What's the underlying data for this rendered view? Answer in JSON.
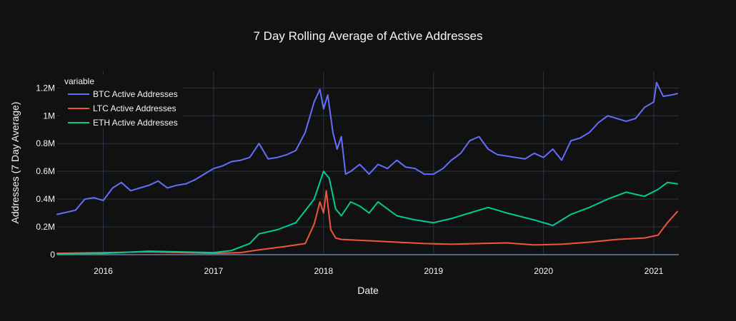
{
  "chart_data": {
    "type": "line",
    "title": "7 Day Rolling Average of Active Addresses",
    "xlabel": "Date",
    "ylabel": "Addresses (7 Day Average)",
    "x_range": [
      "2015-08-01",
      "2021-03-25"
    ],
    "ylim": [
      0,
      1320000
    ],
    "x_ticks": [
      {
        "value": "2016-01-01",
        "label": "2016"
      },
      {
        "value": "2017-01-01",
        "label": "2017"
      },
      {
        "value": "2018-01-01",
        "label": "2018"
      },
      {
        "value": "2019-01-01",
        "label": "2019"
      },
      {
        "value": "2020-01-01",
        "label": "2020"
      },
      {
        "value": "2021-01-01",
        "label": "2021"
      }
    ],
    "y_ticks": [
      {
        "value": 0,
        "label": "0"
      },
      {
        "value": 200000,
        "label": "0.2M"
      },
      {
        "value": 400000,
        "label": "0.4M"
      },
      {
        "value": 600000,
        "label": "0.6M"
      },
      {
        "value": 800000,
        "label": "0.8M"
      },
      {
        "value": 1000000,
        "label": "1M"
      },
      {
        "value": 1200000,
        "label": "1.2M"
      }
    ],
    "grid": true,
    "legend": {
      "title": "variable",
      "placement": "top-left"
    },
    "series": [
      {
        "name": "BTC Active Addresses",
        "color": "#636efa",
        "x": [
          "2015-08-01",
          "2015-10-01",
          "2015-11-01",
          "2015-12-01",
          "2016-01-01",
          "2016-02-01",
          "2016-03-01",
          "2016-04-01",
          "2016-05-01",
          "2016-06-01",
          "2016-07-01",
          "2016-08-01",
          "2016-09-01",
          "2016-10-01",
          "2016-11-01",
          "2016-12-01",
          "2017-01-01",
          "2017-02-01",
          "2017-03-01",
          "2017-04-01",
          "2017-05-01",
          "2017-06-01",
          "2017-07-01",
          "2017-08-01",
          "2017-09-01",
          "2017-10-01",
          "2017-11-01",
          "2017-12-01",
          "2017-12-20",
          "2018-01-01",
          "2018-01-15",
          "2018-02-01",
          "2018-02-15",
          "2018-03-01",
          "2018-03-15",
          "2018-04-01",
          "2018-05-01",
          "2018-06-01",
          "2018-07-01",
          "2018-08-01",
          "2018-09-01",
          "2018-10-01",
          "2018-11-01",
          "2018-12-01",
          "2019-01-01",
          "2019-02-01",
          "2019-03-01",
          "2019-04-01",
          "2019-05-01",
          "2019-06-01",
          "2019-07-01",
          "2019-08-01",
          "2019-09-01",
          "2019-10-01",
          "2019-11-01",
          "2019-12-01",
          "2020-01-01",
          "2020-02-01",
          "2020-03-01",
          "2020-04-01",
          "2020-05-01",
          "2020-06-01",
          "2020-07-01",
          "2020-08-01",
          "2020-09-01",
          "2020-10-01",
          "2020-11-01",
          "2020-12-01",
          "2021-01-01",
          "2021-01-10",
          "2021-02-01",
          "2021-03-01",
          "2021-03-20"
        ],
        "y": [
          290000,
          320000,
          400000,
          410000,
          390000,
          480000,
          520000,
          460000,
          480000,
          500000,
          530000,
          480000,
          500000,
          510000,
          540000,
          580000,
          620000,
          640000,
          670000,
          680000,
          700000,
          800000,
          690000,
          700000,
          720000,
          750000,
          880000,
          1100000,
          1190000,
          1050000,
          1150000,
          880000,
          760000,
          850000,
          580000,
          600000,
          650000,
          580000,
          650000,
          620000,
          680000,
          630000,
          620000,
          580000,
          580000,
          620000,
          680000,
          730000,
          820000,
          850000,
          760000,
          720000,
          710000,
          700000,
          690000,
          730000,
          700000,
          760000,
          680000,
          820000,
          840000,
          880000,
          950000,
          1000000,
          980000,
          960000,
          980000,
          1060000,
          1100000,
          1240000,
          1140000,
          1150000,
          1160000
        ]
      },
      {
        "name": "LTC Active Addresses",
        "color": "#ef553b",
        "x": [
          "2015-08-01",
          "2016-01-01",
          "2016-06-01",
          "2017-01-01",
          "2017-04-01",
          "2017-06-01",
          "2017-09-01",
          "2017-11-01",
          "2017-12-01",
          "2017-12-20",
          "2018-01-01",
          "2018-01-10",
          "2018-01-25",
          "2018-02-10",
          "2018-03-01",
          "2018-06-01",
          "2018-09-01",
          "2018-12-01",
          "2019-03-01",
          "2019-06-01",
          "2019-09-01",
          "2019-12-01",
          "2020-03-01",
          "2020-06-01",
          "2020-09-01",
          "2020-12-01",
          "2021-01-15",
          "2021-02-15",
          "2021-03-20"
        ],
        "y": [
          10000,
          15000,
          20000,
          10000,
          15000,
          35000,
          60000,
          80000,
          220000,
          380000,
          300000,
          460000,
          180000,
          120000,
          110000,
          100000,
          90000,
          80000,
          75000,
          80000,
          85000,
          70000,
          75000,
          90000,
          110000,
          120000,
          140000,
          230000,
          310000
        ]
      },
      {
        "name": "ETH Active Addresses",
        "color": "#00cc96",
        "x": [
          "2015-08-01",
          "2016-01-01",
          "2016-06-01",
          "2017-01-01",
          "2017-03-01",
          "2017-05-01",
          "2017-06-01",
          "2017-08-01",
          "2017-10-01",
          "2017-12-01",
          "2018-01-01",
          "2018-01-20",
          "2018-02-10",
          "2018-03-01",
          "2018-04-01",
          "2018-05-01",
          "2018-06-01",
          "2018-07-01",
          "2018-08-01",
          "2018-09-01",
          "2018-11-01",
          "2019-01-01",
          "2019-03-01",
          "2019-05-01",
          "2019-07-01",
          "2019-09-01",
          "2019-12-01",
          "2020-02-01",
          "2020-04-01",
          "2020-06-01",
          "2020-08-01",
          "2020-10-01",
          "2020-12-01",
          "2021-01-15",
          "2021-02-15",
          "2021-03-20"
        ],
        "y": [
          5000,
          10000,
          25000,
          15000,
          30000,
          80000,
          150000,
          180000,
          230000,
          400000,
          600000,
          550000,
          330000,
          280000,
          380000,
          350000,
          300000,
          380000,
          330000,
          280000,
          250000,
          230000,
          260000,
          300000,
          340000,
          300000,
          250000,
          210000,
          290000,
          340000,
          400000,
          450000,
          420000,
          470000,
          520000,
          510000
        ]
      }
    ]
  }
}
